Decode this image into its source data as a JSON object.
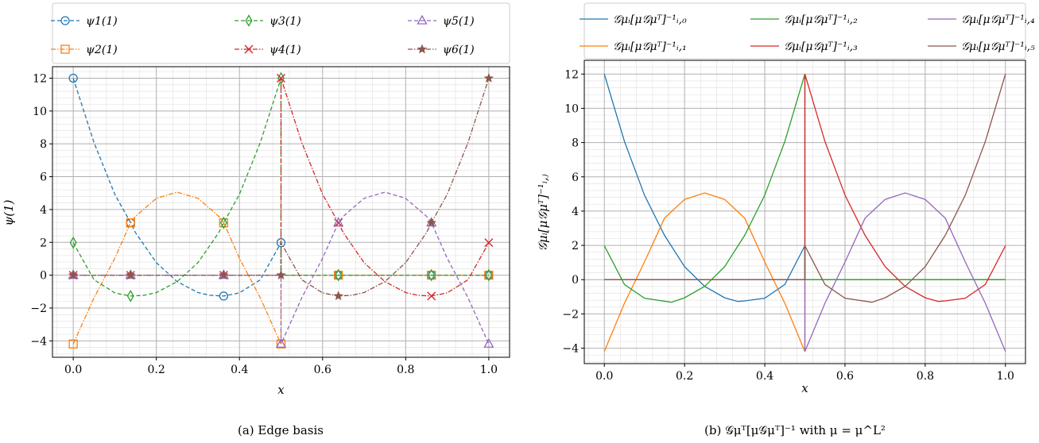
{
  "chart_data": [
    {
      "type": "line",
      "caption": "(a) Edge basis",
      "xlabel": "x",
      "ylabel": "ψ(1)",
      "xlim": [
        -0.05,
        1.05
      ],
      "ylim": [
        -5,
        12.7
      ],
      "xticks": [
        "0.0",
        "0.2",
        "0.4",
        "0.6",
        "0.8",
        "1.0"
      ],
      "yticks": [
        "−4",
        "−2",
        "0",
        "2",
        "4",
        "6",
        "8",
        "10",
        "12"
      ],
      "grid": true,
      "legend_placement": "top",
      "series": [
        {
          "name": "ψ1(1)",
          "label_base": "ψ",
          "label_sub": "1",
          "label_sup": "(1)",
          "color": "#1f77b4",
          "dash": "5,3",
          "marker": "circle",
          "points": [
            [
              0,
              12
            ],
            [
              0.05,
              8.07
            ],
            [
              0.1,
              4.93
            ],
            [
              0.138,
              3.19
            ],
            [
              0.15,
              2.59
            ],
            [
              0.2,
              0.76
            ],
            [
              0.25,
              -0.39
            ],
            [
              0.3,
              -1.06
            ],
            [
              0.33,
              -1.23
            ],
            [
              0.362,
              -1.27
            ],
            [
              0.4,
              -1.08
            ],
            [
              0.45,
              -0.28
            ],
            [
              0.5,
              1.98
            ],
            [
              0.5,
              0
            ],
            [
              1,
              0
            ]
          ],
          "markers": [
            [
              0,
              12
            ],
            [
              0.138,
              3.19
            ],
            [
              0.362,
              -1.27
            ],
            [
              0.5,
              1.98
            ],
            [
              0.638,
              0
            ],
            [
              0.862,
              0
            ],
            [
              1,
              0
            ]
          ]
        },
        {
          "name": "ψ2(1)",
          "label_base": "ψ",
          "label_sub": "2",
          "label_sup": "(1)",
          "color": "#ff7f0e",
          "dash": "6,2,1.5,2",
          "marker": "square",
          "points": [
            [
              0,
              -4.19
            ],
            [
              0.05,
              -1.38
            ],
            [
              0.1,
              1.03
            ],
            [
              0.138,
              3.19
            ],
            [
              0.15,
              3.59
            ],
            [
              0.2,
              4.68
            ],
            [
              0.25,
              5.06
            ],
            [
              0.3,
              4.68
            ],
            [
              0.35,
              3.59
            ],
            [
              0.362,
              3.19
            ],
            [
              0.4,
              1.03
            ],
            [
              0.45,
              -1.38
            ],
            [
              0.5,
              -4.19
            ],
            [
              0.5,
              0
            ],
            [
              1,
              0
            ]
          ],
          "markers": [
            [
              0,
              -4.19
            ],
            [
              0.138,
              3.19
            ],
            [
              0.362,
              3.19
            ],
            [
              0.5,
              -4.19
            ],
            [
              0.638,
              0
            ],
            [
              0.862,
              0
            ],
            [
              1,
              0
            ]
          ]
        },
        {
          "name": "ψ3(1)",
          "label_base": "ψ",
          "label_sub": "3",
          "label_sup": "(1)",
          "color": "#2ca02c",
          "dash": "5,3",
          "marker": "diamond",
          "points": [
            [
              0,
              1.98
            ],
            [
              0.05,
              -0.28
            ],
            [
              0.1,
              -1.08
            ],
            [
              0.138,
              -1.27
            ],
            [
              0.17,
              -1.23
            ],
            [
              0.2,
              -1.06
            ],
            [
              0.25,
              -0.39
            ],
            [
              0.3,
              0.76
            ],
            [
              0.35,
              2.59
            ],
            [
              0.362,
              3.19
            ],
            [
              0.4,
              4.93
            ],
            [
              0.45,
              8.07
            ],
            [
              0.5,
              12
            ],
            [
              0.5,
              0
            ],
            [
              1,
              0
            ]
          ],
          "markers": [
            [
              0,
              1.98
            ],
            [
              0.138,
              -1.27
            ],
            [
              0.362,
              3.19
            ],
            [
              0.5,
              12
            ],
            [
              0.638,
              0
            ],
            [
              0.862,
              0
            ],
            [
              1,
              0
            ]
          ]
        },
        {
          "name": "ψ4(1)",
          "label_base": "ψ",
          "label_sub": "4",
          "label_sup": "(1)",
          "color": "#d62728",
          "dash": "6,2,1.5,2",
          "marker": "x",
          "points": [
            [
              0,
              0
            ],
            [
              0.5,
              0
            ],
            [
              0.5,
              12
            ],
            [
              0.55,
              8.07
            ],
            [
              0.6,
              4.93
            ],
            [
              0.638,
              3.19
            ],
            [
              0.65,
              2.59
            ],
            [
              0.7,
              0.76
            ],
            [
              0.75,
              -0.39
            ],
            [
              0.8,
              -1.06
            ],
            [
              0.83,
              -1.23
            ],
            [
              0.862,
              -1.27
            ],
            [
              0.9,
              -1.08
            ],
            [
              0.95,
              -0.28
            ],
            [
              1,
              1.98
            ]
          ],
          "markers": [
            [
              0,
              0
            ],
            [
              0.138,
              0
            ],
            [
              0.362,
              0
            ],
            [
              0.5,
              12
            ],
            [
              0.638,
              3.19
            ],
            [
              0.862,
              -1.27
            ],
            [
              1,
              1.98
            ]
          ]
        },
        {
          "name": "ψ5(1)",
          "label_base": "ψ",
          "label_sub": "5",
          "label_sup": "(1)",
          "color": "#9467bd",
          "dash": "5,3",
          "marker": "triangle",
          "points": [
            [
              0,
              0
            ],
            [
              0.5,
              0
            ],
            [
              0.5,
              -4.19
            ],
            [
              0.55,
              -1.38
            ],
            [
              0.6,
              1.03
            ],
            [
              0.638,
              3.19
            ],
            [
              0.65,
              3.59
            ],
            [
              0.7,
              4.68
            ],
            [
              0.75,
              5.06
            ],
            [
              0.8,
              4.68
            ],
            [
              0.85,
              3.59
            ],
            [
              0.862,
              3.19
            ],
            [
              0.9,
              1.03
            ],
            [
              0.95,
              -1.38
            ],
            [
              1,
              -4.19
            ]
          ],
          "markers": [
            [
              0,
              0
            ],
            [
              0.138,
              0
            ],
            [
              0.362,
              0
            ],
            [
              0.5,
              -4.19
            ],
            [
              0.638,
              3.19
            ],
            [
              0.862,
              3.19
            ],
            [
              1,
              -4.19
            ]
          ]
        },
        {
          "name": "ψ6(1)",
          "label_base": "ψ",
          "label_sub": "6",
          "label_sup": "(1)",
          "color": "#8c564b",
          "dash": "6,2,1.5,2",
          "marker": "star",
          "points": [
            [
              0,
              0
            ],
            [
              0.5,
              0
            ],
            [
              0.5,
              1.98
            ],
            [
              0.55,
              -0.28
            ],
            [
              0.6,
              -1.08
            ],
            [
              0.638,
              -1.27
            ],
            [
              0.67,
              -1.23
            ],
            [
              0.7,
              -1.06
            ],
            [
              0.75,
              -0.39
            ],
            [
              0.8,
              0.76
            ],
            [
              0.85,
              2.59
            ],
            [
              0.862,
              3.19
            ],
            [
              0.9,
              4.93
            ],
            [
              0.95,
              8.07
            ],
            [
              1,
              12
            ]
          ],
          "markers": [
            [
              0,
              0
            ],
            [
              0.138,
              0
            ],
            [
              0.362,
              0
            ],
            [
              0.5,
              0
            ],
            [
              0.638,
              -1.27
            ],
            [
              0.862,
              3.19
            ],
            [
              1,
              12
            ]
          ]
        }
      ]
    },
    {
      "type": "line",
      "caption": "(b) 𝒢μᵀ[μ𝒢μᵀ]⁻¹ with μ = μ^L²",
      "xlabel": "x",
      "ylabel": "𝒢μᵢ[μ𝒢μᵀ]⁻¹ᵢ,ⱼ",
      "xlim": [
        -0.05,
        1.05
      ],
      "ylim": [
        -4.9,
        12.8
      ],
      "xticks": [
        "0.0",
        "0.2",
        "0.4",
        "0.6",
        "0.8",
        "1.0"
      ],
      "yticks": [
        "−4",
        "−2",
        "0",
        "2",
        "4",
        "6",
        "8",
        "10",
        "12"
      ],
      "grid": true,
      "legend_placement": "top",
      "series": [
        {
          "name": "𝒢μᵢ[μ𝒢μᵀ]⁻¹ᵢ,₀",
          "label_sub": "i,0",
          "color": "#1f77b4",
          "points": [
            [
              0,
              12
            ],
            [
              0.05,
              8.07
            ],
            [
              0.1,
              4.93
            ],
            [
              0.15,
              2.59
            ],
            [
              0.2,
              0.76
            ],
            [
              0.25,
              -0.39
            ],
            [
              0.3,
              -1.06
            ],
            [
              0.333,
              -1.27
            ],
            [
              0.35,
              -1.24
            ],
            [
              0.4,
              -1.08
            ],
            [
              0.45,
              -0.28
            ],
            [
              0.5,
              1.98
            ],
            [
              0.5,
              0
            ],
            [
              1,
              0
            ]
          ]
        },
        {
          "name": "𝒢μᵢ[μ𝒢μᵀ]⁻¹ᵢ,₁",
          "label_sub": "i,1",
          "color": "#ff7f0e",
          "points": [
            [
              0,
              -4.19
            ],
            [
              0.05,
              -1.38
            ],
            [
              0.1,
              1.03
            ],
            [
              0.15,
              3.59
            ],
            [
              0.2,
              4.68
            ],
            [
              0.25,
              5.06
            ],
            [
              0.3,
              4.68
            ],
            [
              0.35,
              3.59
            ],
            [
              0.4,
              1.03
            ],
            [
              0.45,
              -1.38
            ],
            [
              0.5,
              -4.19
            ],
            [
              0.5,
              0
            ],
            [
              1,
              0
            ]
          ]
        },
        {
          "name": "𝒢μᵢ[μ𝒢μᵀ]⁻¹ᵢ,₂",
          "label_sub": "i,2",
          "color": "#2ca02c",
          "points": [
            [
              0,
              1.98
            ],
            [
              0.05,
              -0.28
            ],
            [
              0.1,
              -1.08
            ],
            [
              0.167,
              -1.32
            ],
            [
              0.2,
              -1.06
            ],
            [
              0.25,
              -0.39
            ],
            [
              0.3,
              0.76
            ],
            [
              0.35,
              2.59
            ],
            [
              0.4,
              4.93
            ],
            [
              0.45,
              8.07
            ],
            [
              0.5,
              12
            ],
            [
              0.5,
              0
            ],
            [
              1,
              0
            ]
          ]
        },
        {
          "name": "𝒢μᵢ[μ𝒢μᵀ]⁻¹ᵢ,₃",
          "label_sub": "i,3",
          "color": "#d62728",
          "points": [
            [
              0,
              0
            ],
            [
              0.5,
              0
            ],
            [
              0.5,
              12
            ],
            [
              0.55,
              8.07
            ],
            [
              0.6,
              4.93
            ],
            [
              0.65,
              2.59
            ],
            [
              0.7,
              0.76
            ],
            [
              0.75,
              -0.39
            ],
            [
              0.8,
              -1.06
            ],
            [
              0.833,
              -1.27
            ],
            [
              0.85,
              -1.24
            ],
            [
              0.9,
              -1.08
            ],
            [
              0.95,
              -0.28
            ],
            [
              1,
              1.98
            ]
          ]
        },
        {
          "name": "𝒢μᵢ[μ𝒢μᵀ]⁻¹ᵢ,₄",
          "label_sub": "i,4",
          "color": "#9467bd",
          "points": [
            [
              0,
              0
            ],
            [
              0.5,
              0
            ],
            [
              0.5,
              -4.19
            ],
            [
              0.55,
              -1.38
            ],
            [
              0.6,
              1.03
            ],
            [
              0.65,
              3.59
            ],
            [
              0.7,
              4.68
            ],
            [
              0.75,
              5.06
            ],
            [
              0.8,
              4.68
            ],
            [
              0.85,
              3.59
            ],
            [
              0.9,
              1.03
            ],
            [
              0.95,
              -1.38
            ],
            [
              1,
              -4.19
            ]
          ]
        },
        {
          "name": "𝒢μᵢ[μ𝒢μᵀ]⁻¹ᵢ,₅",
          "label_sub": "i,5",
          "color": "#8c564b",
          "points": [
            [
              0,
              0
            ],
            [
              0.5,
              0
            ],
            [
              0.5,
              1.98
            ],
            [
              0.55,
              -0.28
            ],
            [
              0.6,
              -1.08
            ],
            [
              0.667,
              -1.32
            ],
            [
              0.7,
              -1.06
            ],
            [
              0.75,
              -0.39
            ],
            [
              0.8,
              0.76
            ],
            [
              0.85,
              2.59
            ],
            [
              0.9,
              4.93
            ],
            [
              0.95,
              8.07
            ],
            [
              1,
              12
            ]
          ]
        }
      ]
    }
  ]
}
